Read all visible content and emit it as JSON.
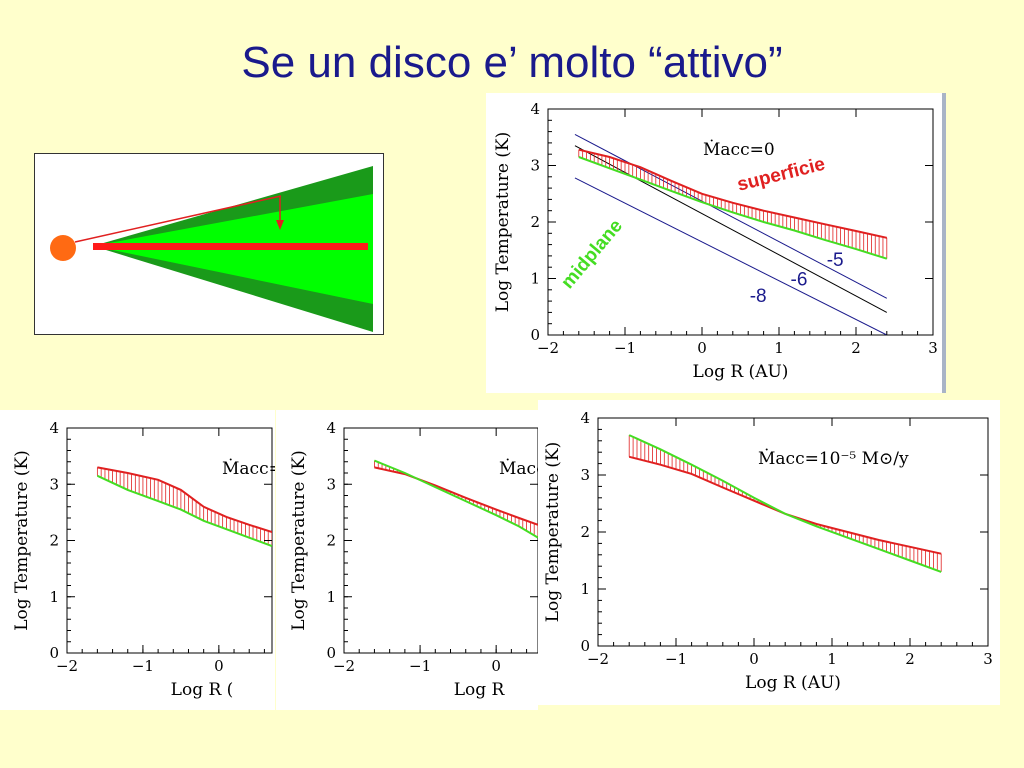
{
  "slide": {
    "title": "Se un disco e’ molto “attivo”"
  },
  "chart_data": [
    {
      "id": "main",
      "type": "area",
      "xlabel": "Log R (AU)",
      "ylabel": "Log Temperature (K)",
      "xlim": [
        -2,
        3
      ],
      "ylim": [
        0,
        4
      ],
      "xticks": [
        "−2",
        "−1",
        "0",
        "1",
        "2",
        "3"
      ],
      "yticks": [
        "0",
        "1",
        "2",
        "3",
        "4"
      ],
      "annotation": "Ṁacc=0",
      "labels": {
        "surface": "superficie",
        "midplane": "midplane"
      },
      "series": [
        {
          "name": "superficie",
          "color": "#e02020",
          "x": [
            -1.6,
            -1.2,
            -0.8,
            -0.4,
            0,
            0.4,
            0.8,
            1.2,
            1.6,
            2.0,
            2.4
          ],
          "y": [
            3.28,
            3.15,
            2.97,
            2.73,
            2.5,
            2.34,
            2.2,
            2.08,
            1.96,
            1.84,
            1.72
          ]
        },
        {
          "name": "midplane",
          "color": "#44dd22",
          "x": [
            -1.6,
            -1.2,
            -0.8,
            -0.4,
            0,
            0.4,
            0.8,
            1.2,
            1.6,
            2.0,
            2.4
          ],
          "y": [
            3.15,
            2.95,
            2.75,
            2.55,
            2.35,
            2.17,
            2.0,
            1.85,
            1.68,
            1.52,
            1.35
          ]
        }
      ],
      "reference_lines": [
        {
          "label": "-5",
          "color": "#1a1a8c",
          "x": [
            -1.65,
            2.4
          ],
          "y": [
            3.55,
            0.65
          ]
        },
        {
          "label": "-6",
          "color": "#000000",
          "x": [
            -1.65,
            2.4
          ],
          "y": [
            3.35,
            0.4
          ]
        },
        {
          "label": "-8",
          "color": "#1a1a8c",
          "x": [
            -1.65,
            2.4
          ],
          "y": [
            2.78,
            0.0
          ]
        }
      ],
      "ref_label_pos": [
        {
          "label": "-5",
          "x": 1.62,
          "y": 1.22
        },
        {
          "label": "-6",
          "x": 1.15,
          "y": 0.88
        },
        {
          "label": "-8",
          "x": 0.62,
          "y": 0.58
        }
      ]
    },
    {
      "id": "bl",
      "type": "area",
      "xlabel": "Log R (",
      "ylabel": "Log Temperature (K)",
      "xlim": [
        -2,
        0.7
      ],
      "ylim": [
        0,
        4
      ],
      "xticks": [
        "−2",
        "−1",
        "0"
      ],
      "yticks": [
        "0",
        "1",
        "2",
        "3",
        "4"
      ],
      "annotation": "Ṁacc=",
      "series": [
        {
          "name": "",
          "color": "#e02020",
          "x": [
            -1.6,
            -1.2,
            -0.8,
            -0.5,
            -0.2,
            0.1,
            0.4,
            0.7
          ],
          "y": [
            3.3,
            3.2,
            3.08,
            2.9,
            2.6,
            2.42,
            2.28,
            2.15
          ]
        },
        {
          "name": "",
          "color": "#44dd22",
          "x": [
            -1.6,
            -1.2,
            -0.8,
            -0.5,
            -0.2,
            0.1,
            0.4,
            0.7
          ],
          "y": [
            3.15,
            2.9,
            2.7,
            2.55,
            2.35,
            2.2,
            2.05,
            1.9
          ]
        }
      ]
    },
    {
      "id": "bm",
      "type": "area",
      "xlabel": "Log R",
      "ylabel": "Log Temperature (K)",
      "xlim": [
        -2,
        0.55
      ],
      "ylim": [
        0,
        4
      ],
      "xticks": [
        "−2",
        "−1",
        "0"
      ],
      "yticks": [
        "0",
        "1",
        "2",
        "3",
        "4"
      ],
      "annotation": "Ṁacc",
      "series": [
        {
          "name": "",
          "color": "#e02020",
          "x": [
            -1.6,
            -1.2,
            -0.8,
            -0.4,
            0,
            0.3,
            0.55
          ],
          "y": [
            3.3,
            3.18,
            2.98,
            2.76,
            2.55,
            2.4,
            2.28
          ]
        },
        {
          "name": "",
          "color": "#44dd22",
          "x": [
            -1.6,
            -1.2,
            -0.8,
            -0.4,
            0,
            0.3,
            0.55
          ],
          "y": [
            3.42,
            3.2,
            2.95,
            2.7,
            2.45,
            2.25,
            2.05
          ]
        }
      ]
    },
    {
      "id": "br",
      "type": "area",
      "xlabel": "Log R (AU)",
      "ylabel": "Log Temperature (K)",
      "xlim": [
        -2,
        3
      ],
      "ylim": [
        0,
        4
      ],
      "xticks": [
        "−2",
        "−1",
        "0",
        "1",
        "2",
        "3"
      ],
      "yticks": [
        "0",
        "1",
        "2",
        "3",
        "4"
      ],
      "annotation": "Ṁacc=10⁻⁵ M⊙/y",
      "series": [
        {
          "name": "",
          "color": "#e02020",
          "x": [
            -1.6,
            -1.2,
            -0.8,
            -0.4,
            0,
            0.4,
            0.8,
            1.2,
            1.6,
            2.0,
            2.4
          ],
          "y": [
            3.32,
            3.18,
            3.02,
            2.78,
            2.55,
            2.32,
            2.14,
            2.0,
            1.86,
            1.74,
            1.62
          ]
        },
        {
          "name": "",
          "color": "#44dd22",
          "x": [
            -1.6,
            -1.2,
            -0.8,
            -0.4,
            0,
            0.4,
            0.8,
            1.2,
            1.6,
            2.0,
            2.4
          ],
          "y": [
            3.7,
            3.45,
            3.18,
            2.9,
            2.6,
            2.32,
            2.1,
            1.9,
            1.7,
            1.5,
            1.3
          ]
        }
      ]
    }
  ],
  "schematic": {
    "star_color": "#ff6a13",
    "disk_outer_color": "#1a9a1a",
    "disk_inner_color": "#00ff00",
    "midplane_color": "#ff1a1a",
    "ray_color": "#e02020"
  }
}
